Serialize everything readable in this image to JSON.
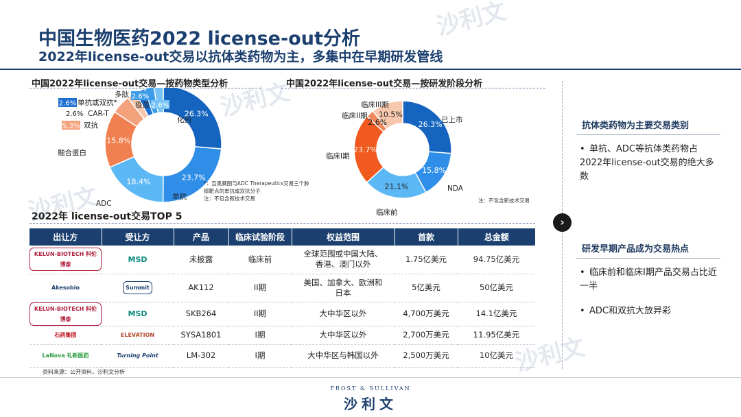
{
  "title": "中国生物医药2022 license-out分析",
  "subtitle": "2022年license-out交易以抗体类药物为主，多集中在早期研发管线",
  "watermark": {
    "cn": "沙利文",
    "en": "FROST & SULLIVAN"
  },
  "left_chart": {
    "heading": "中国2022年license-out交易—按药物类型分析",
    "note": "*：百奥赛图与ADC Therapeutics交易三个肿瘤靶点的单抗或双抗分子\n注：不包含新技术交易"
  },
  "right_chart": {
    "heading": "中国2022年license-out交易—按研发阶段分析",
    "note": "注：不包含新技术交易"
  },
  "chart_data": [
    {
      "type": "pie",
      "title": "中国2022年license-out交易—按药物类型分析",
      "labels": [
        "化药",
        "单抗",
        "ADC",
        "融合蛋白",
        "双抗",
        "CAR-T",
        "单抗或双抗*",
        "多肽",
        "疫苗"
      ],
      "values": [
        26.3,
        23.7,
        18.4,
        15.8,
        5.3,
        2.6,
        2.6,
        2.6,
        2.6
      ],
      "value_labels": [
        "26.3%",
        "23.7%",
        "18.4%",
        "15.8%",
        "5.3%",
        "2.6%",
        "2.6%",
        "2.6%",
        "2.6%"
      ],
      "colors": [
        "#1565c0",
        "#2f8ee8",
        "#5cb8f5",
        "#f08050",
        "#f4a27c",
        "#f8c8ae",
        "#1d6fd0",
        "#3c9be8",
        "#74c3f4"
      ]
    },
    {
      "type": "pie",
      "title": "中国2022年license-out交易—按研发阶段分析",
      "labels": [
        "已上市",
        "NDA",
        "临床前",
        "临床I期",
        "临床II期",
        "临床III期"
      ],
      "values": [
        26.3,
        15.8,
        21.1,
        23.7,
        2.6,
        10.5
      ],
      "value_labels": [
        "26.3%",
        "15.8%",
        "21.1%",
        "23.7%",
        "2.6%",
        "10.5%"
      ],
      "colors": [
        "#1565c0",
        "#2f8ee8",
        "#5cb8f5",
        "#f05a1e",
        "#f08a5a",
        "#f8c8ae"
      ]
    }
  ],
  "table": {
    "heading": "2022年 license-out交易TOP 5",
    "headers": [
      "出让方",
      "受让方",
      "产品",
      "临床试验阶段",
      "权益范围",
      "首款",
      "总金额"
    ],
    "rows": [
      {
        "licensor": "KELUN-BIOTECH 科伦博泰",
        "licensee": "MSD",
        "product": "未披露",
        "stage": "临床前",
        "scope": "全球范围或中国大陆、香港、澳门以外",
        "upfront": "1.75亿美元",
        "total": "94.75亿美元"
      },
      {
        "licensor": "Akesobio",
        "licensee": "Summit",
        "product": "AK112",
        "stage": "II期",
        "scope": "美国、加拿大、欧洲和日本",
        "upfront": "5亿美元",
        "total": "50亿美元"
      },
      {
        "licensor": "KELUN-BIOTECH 科伦博泰",
        "licensee": "MSD",
        "product": "SKB264",
        "stage": "II期",
        "scope": "大中华区以外",
        "upfront": "4,700万美元",
        "total": "14.1亿美元"
      },
      {
        "licensor": "石药集团",
        "licensee": "ELEVATION",
        "product": "SYSA1801",
        "stage": "I期",
        "scope": "大中华区以外",
        "upfront": "2,700万美元",
        "total": "11.95亿美元"
      },
      {
        "licensor": "LaNova 礼新医药",
        "licensee": "Turning Point",
        "product": "LM-302",
        "stage": "I期",
        "scope": "大中华区与韩国以外",
        "upfront": "2,500万美元",
        "total": "10亿美元"
      }
    ]
  },
  "sidebar": {
    "section1": {
      "heading": "抗体类药物为主要交易类别",
      "bullets": [
        "单抗、ADC等抗体类药物占2022年license-out交易的绝大多数"
      ]
    },
    "section2": {
      "heading": "研发早期产品成为交易热点",
      "bullets": [
        "临床前和临床I期产品交易占比近一半",
        "ADC和双抗大放异彩"
      ]
    }
  },
  "source": "资料来源：公开资料，沙利文分析",
  "footer": {
    "en": "FROST & SULLIVAN",
    "cn": "沙利文"
  },
  "colors": {
    "brand": "#1b3f6e",
    "accent": "#1565c0"
  }
}
